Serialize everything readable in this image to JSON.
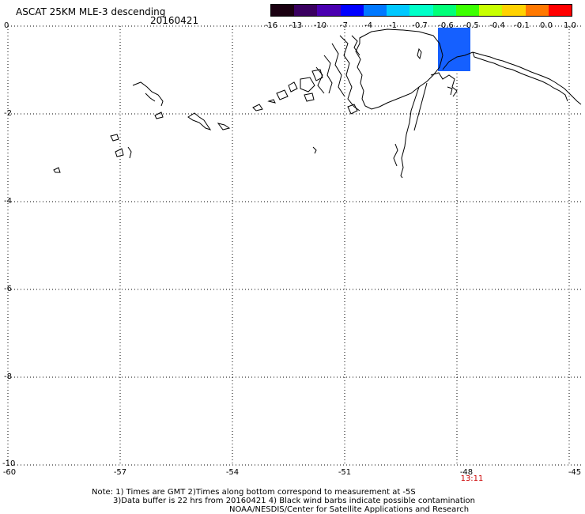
{
  "header": {
    "title": "ASCAT 25KM MLE-3 descending",
    "date": "20160421"
  },
  "colorbar": {
    "labels": [
      "-16",
      "-13",
      "-10",
      "-7",
      "-4",
      "-1",
      "-0.7",
      "-0.6",
      "-0.5",
      "-0.4",
      "-0.1",
      "0.0",
      "1.0"
    ],
    "colors": [
      "#1a0010",
      "#3a0060",
      "#4a00b0",
      "#0000ff",
      "#0078ff",
      "#00c8ff",
      "#00ffc8",
      "#00ff78",
      "#3cff00",
      "#c8ff00",
      "#ffd200",
      "#ff7800",
      "#ff0000"
    ]
  },
  "axes": {
    "y_labels": [
      "0",
      "-2",
      "-4",
      "-6",
      "-8",
      "-10"
    ],
    "x_labels": [
      "-60",
      "-57",
      "-54",
      "-51",
      "-48",
      "-45"
    ],
    "xlim": [
      -60,
      -45
    ],
    "ylim": [
      -10,
      0
    ],
    "grid": true
  },
  "time_label": "13:11",
  "footer": {
    "line1": "Note: 1) Times are GMT 2)Times along bottom correspond to measurement at -5S",
    "line2": "3)Data buffer is 22 hrs from 20160421 4) Black wind barbs indicate possible contamination",
    "line3": "NOAA/NESDIS/Center for Satellite Applications and Research"
  },
  "data_patch": {
    "color": "#1560ff",
    "lon_range": [
      -48.8,
      -47.9
    ],
    "lat_range": [
      -1.0,
      -0.05
    ]
  }
}
